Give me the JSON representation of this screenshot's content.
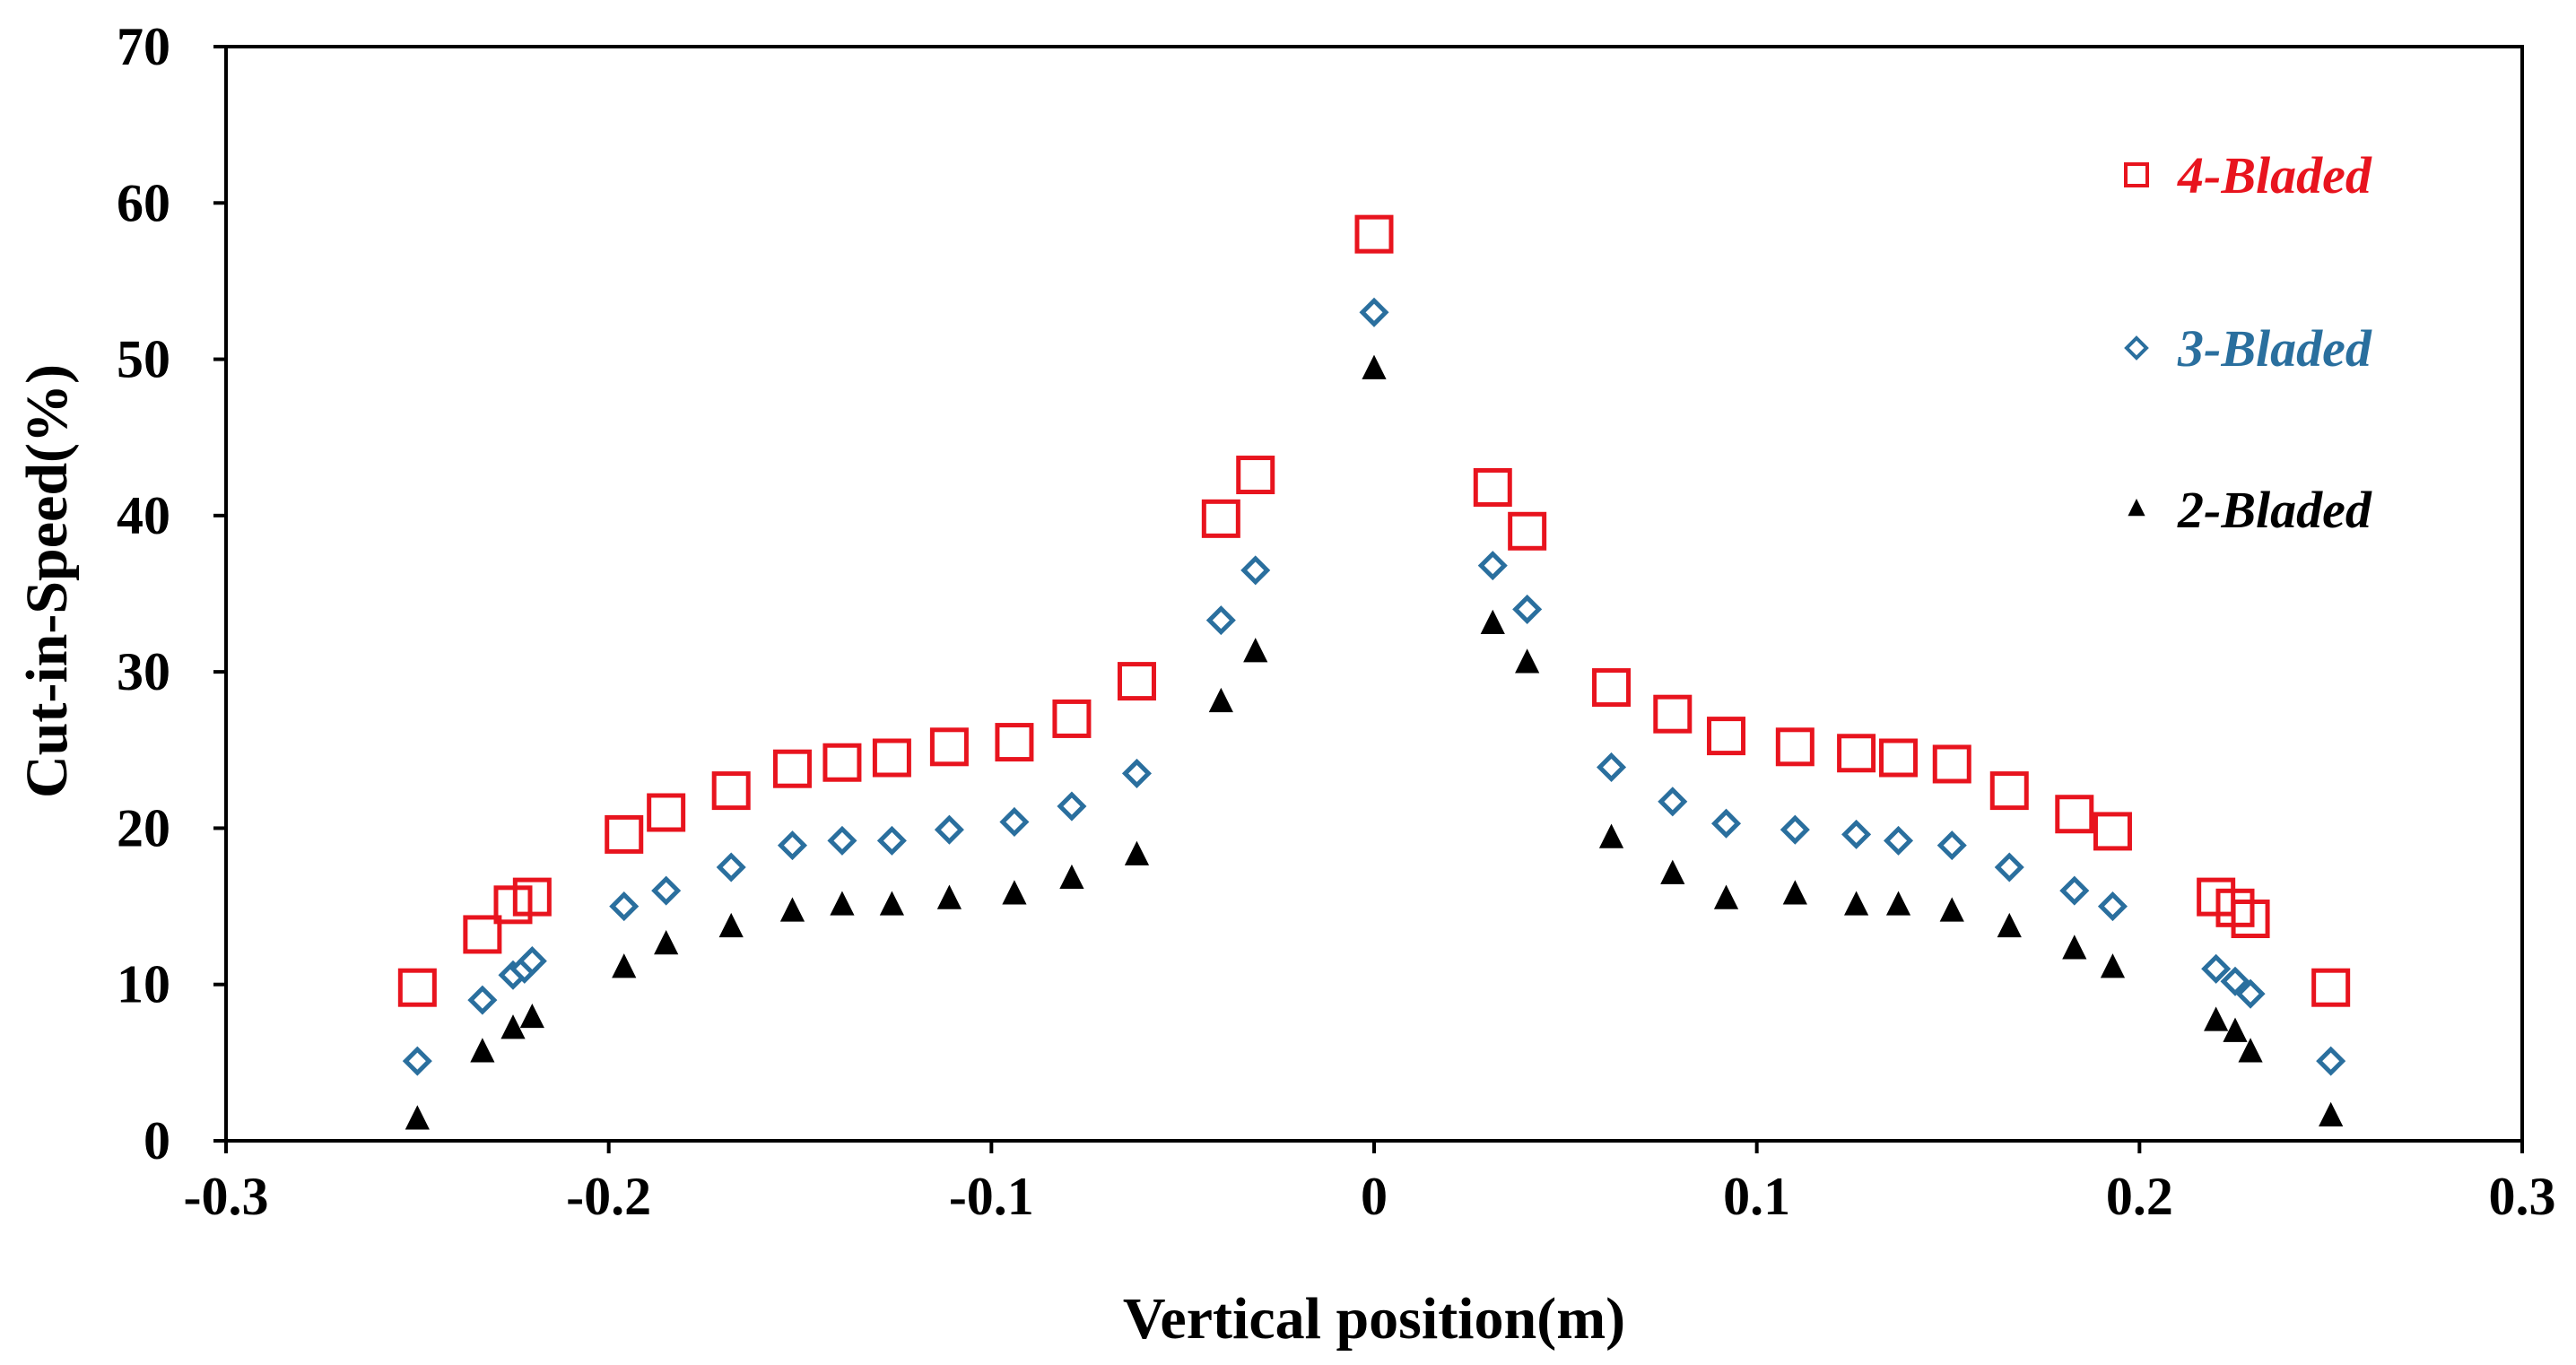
{
  "chart_data": {
    "type": "scatter",
    "xlabel": "Vertical position(m)",
    "ylabel": "Cut-in-Speed(%)",
    "xlim": [
      -0.3,
      0.3
    ],
    "ylim": [
      0,
      70
    ],
    "xticks": [
      -0.3,
      -0.2,
      -0.1,
      0,
      0.1,
      0.2,
      0.3
    ],
    "xtick_labels": [
      "-0.3",
      "-0.2",
      "-0.1",
      "0",
      "0.1",
      "0.2",
      "0.3"
    ],
    "yticks": [
      0,
      10,
      20,
      30,
      40,
      50,
      60,
      70
    ],
    "ytick_labels": [
      "0",
      "10",
      "20",
      "30",
      "40",
      "50",
      "60",
      "70"
    ],
    "grid": false,
    "legend_position": "top-right",
    "series": [
      {
        "name": "4-Bladed",
        "marker": "square-open",
        "color": "#e8141e",
        "x": [
          -0.25,
          -0.233,
          -0.225,
          -0.22,
          -0.196,
          -0.185,
          -0.168,
          -0.152,
          -0.139,
          -0.126,
          -0.111,
          -0.094,
          -0.079,
          -0.062,
          -0.04,
          -0.031,
          0,
          0.031,
          0.04,
          0.062,
          0.078,
          0.092,
          0.11,
          0.126,
          0.137,
          0.151,
          0.166,
          0.183,
          0.193,
          0.22,
          0.225,
          0.229,
          0.25
        ],
        "y": [
          9.8,
          13.2,
          15.1,
          15.6,
          19.6,
          21.0,
          22.4,
          23.8,
          24.2,
          24.5,
          25.2,
          25.5,
          27.0,
          29.4,
          39.8,
          42.6,
          58.0,
          41.8,
          39.0,
          29.0,
          27.3,
          25.9,
          25.2,
          24.8,
          24.5,
          24.1,
          22.4,
          20.9,
          19.8,
          15.6,
          14.9,
          14.2,
          9.8
        ]
      },
      {
        "name": "3-Bladed",
        "marker": "diamond",
        "color": "#2a6f9e",
        "x": [
          -0.25,
          -0.233,
          -0.225,
          -0.222,
          -0.22,
          -0.196,
          -0.185,
          -0.168,
          -0.152,
          -0.139,
          -0.126,
          -0.111,
          -0.094,
          -0.079,
          -0.062,
          -0.04,
          -0.031,
          0,
          0.031,
          0.04,
          0.062,
          0.078,
          0.092,
          0.11,
          0.126,
          0.137,
          0.151,
          0.166,
          0.183,
          0.193,
          0.22,
          0.225,
          0.229,
          0.25
        ],
        "y": [
          5.1,
          9.0,
          10.6,
          11.0,
          11.5,
          15.0,
          16.0,
          17.5,
          18.9,
          19.2,
          19.2,
          19.9,
          20.4,
          21.4,
          23.5,
          33.3,
          36.5,
          53.0,
          36.8,
          34.0,
          23.9,
          21.7,
          20.3,
          19.9,
          19.6,
          19.2,
          18.9,
          17.5,
          16.0,
          15.0,
          11.0,
          10.2,
          9.4,
          5.1
        ]
      },
      {
        "name": "2-Bladed",
        "marker": "triangle",
        "color": "#000000",
        "x": [
          -0.25,
          -0.233,
          -0.225,
          -0.22,
          -0.196,
          -0.185,
          -0.168,
          -0.152,
          -0.139,
          -0.126,
          -0.111,
          -0.094,
          -0.079,
          -0.062,
          -0.04,
          -0.031,
          0,
          0.031,
          0.04,
          0.062,
          0.078,
          0.092,
          0.11,
          0.126,
          0.137,
          0.151,
          0.166,
          0.183,
          0.193,
          0.22,
          0.225,
          0.229,
          0.25
        ],
        "y": [
          1.3,
          5.6,
          7.1,
          7.8,
          11.0,
          12.5,
          13.6,
          14.6,
          15.0,
          15.0,
          15.4,
          15.7,
          16.7,
          18.2,
          28.0,
          31.2,
          49.3,
          33.0,
          30.5,
          19.3,
          17.0,
          15.4,
          15.7,
          15.0,
          15.0,
          14.6,
          13.6,
          12.2,
          11.0,
          7.6,
          6.9,
          5.6,
          1.5
        ]
      }
    ]
  }
}
